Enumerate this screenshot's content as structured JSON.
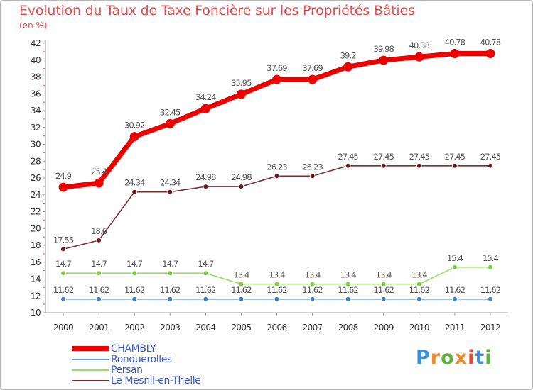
{
  "chart_data": {
    "type": "line",
    "title": "Evolution du Taux de Taxe Foncière sur les Propriétés Bâties",
    "unit": "(en %)",
    "xlabel": "",
    "ylabel": "",
    "ylim": [
      10,
      42
    ],
    "yticks": [
      10,
      12,
      14,
      16,
      18,
      20,
      22,
      24,
      26,
      28,
      30,
      32,
      34,
      36,
      38,
      40,
      42
    ],
    "grid": false,
    "legend_position": "bottom-left",
    "categories": [
      "2000",
      "2001",
      "2002",
      "2003",
      "2004",
      "2005",
      "2006",
      "2007",
      "2008",
      "2009",
      "2010",
      "2011",
      "2012"
    ],
    "series": [
      {
        "name": "CHAMBLY",
        "color": "#ee0000",
        "emphasis": true,
        "values": [
          24.9,
          25.4,
          30.92,
          32.45,
          34.24,
          35.95,
          37.69,
          37.69,
          39.2,
          39.98,
          40.38,
          40.78,
          40.78
        ],
        "labels": [
          "24.9",
          "25.4",
          "30.92",
          "32.45",
          "34.24",
          "35.95",
          "37.69",
          "37.69",
          "39.2",
          "39.98",
          "40.38",
          "40.78",
          "40.78"
        ]
      },
      {
        "name": "Ronquerolles",
        "color": "#5b9bd5",
        "marker": "#3b84c4",
        "values": [
          11.62,
          11.62,
          11.62,
          11.62,
          11.62,
          11.62,
          11.62,
          11.62,
          11.62,
          11.62,
          11.62,
          11.62,
          11.62
        ],
        "labels": [
          "11.62",
          "11.62",
          "11.62",
          "11.62",
          "11.62",
          "11.62",
          "11.62",
          "11.62",
          "11.62",
          "11.62",
          "11.62",
          "11.62",
          "11.62"
        ]
      },
      {
        "name": "Persan",
        "color": "#99dd66",
        "marker": "#7ccb3d",
        "values": [
          14.7,
          14.7,
          14.7,
          14.7,
          14.7,
          13.4,
          13.4,
          13.4,
          13.4,
          13.4,
          13.4,
          15.4,
          15.4
        ],
        "labels": [
          "14.7",
          "14.7",
          "14.7",
          "14.7",
          "14.7",
          "13.4",
          "13.4",
          "13.4",
          "13.4",
          "13.4",
          "13.4",
          "15.4",
          "15.4"
        ]
      },
      {
        "name": "Le Mesnil-en-Thelle",
        "color": "#7a2f2f",
        "marker": "#6b1d1d",
        "values": [
          17.55,
          18.6,
          24.34,
          24.34,
          24.98,
          24.98,
          26.23,
          26.23,
          27.45,
          27.45,
          27.45,
          27.45,
          27.45
        ],
        "labels": [
          "17.55",
          "18.6",
          "24.34",
          "24.34",
          "24.98",
          "24.98",
          "26.23",
          "26.23",
          "27.45",
          "27.45",
          "27.45",
          "27.45",
          "27.45"
        ]
      }
    ]
  },
  "logo": {
    "text": "Proxiti",
    "colors": [
      "#3c8fd6",
      "#ef8a2a",
      "#62b244",
      "#ef8a2a",
      "#e04a3a",
      "#3c8fd6",
      "#62b244"
    ]
  }
}
